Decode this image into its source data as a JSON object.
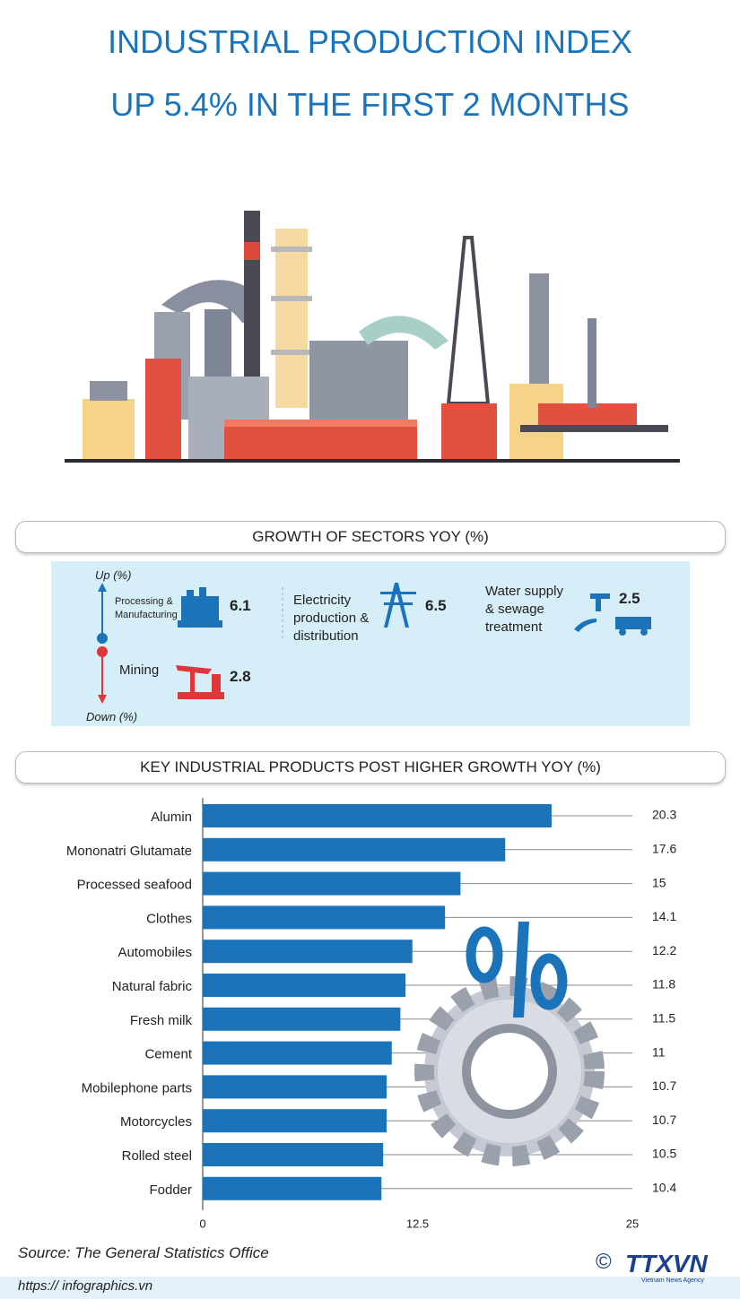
{
  "header": {
    "title_line1": "INDUSTRIAL PRODUCTION INDEX",
    "title_line2": "UP 5.4% IN THE FIRST 2 MONTHS"
  },
  "sectors": {
    "title": "GROWTH OF SECTORS YOY (%)",
    "up_label": "Up (%)",
    "down_label": "Down (%)",
    "up": [
      {
        "name": "Processing & Manufacturing",
        "value": 6.1
      },
      {
        "name": "Electricity production & distribution",
        "value": 6.5
      },
      {
        "name": "Water supply & sewage treatment",
        "value": 2.5
      }
    ],
    "down": [
      {
        "name": "Mining",
        "value": 2.8
      }
    ]
  },
  "chart_data": {
    "type": "bar",
    "orientation": "horizontal",
    "title": "KEY INDUSTRIAL PRODUCTS POST HIGHER GROWTH YOY (%)",
    "categories": [
      "Alumin",
      "Mononatri Glutamate",
      "Processed seafood",
      "Clothes",
      "Automobiles",
      "Natural fabric",
      "Fresh milk",
      "Cement",
      "Mobilephone parts",
      "Motorcycles",
      "Rolled steel",
      "Fodder"
    ],
    "values": [
      20.3,
      17.6,
      15,
      14.1,
      12.2,
      11.8,
      11.5,
      11,
      10.7,
      10.7,
      10.5,
      10.4
    ],
    "color": "#1b73ba",
    "xlim": [
      0,
      25
    ],
    "xticks": [
      0,
      12.5,
      25
    ]
  },
  "footer": {
    "source": "Source: The General Statistics Office",
    "url": "https:// infographics.vn",
    "copyright": "©",
    "logo": "TTXVN",
    "logo_sub": "Vietnam News Agency"
  }
}
